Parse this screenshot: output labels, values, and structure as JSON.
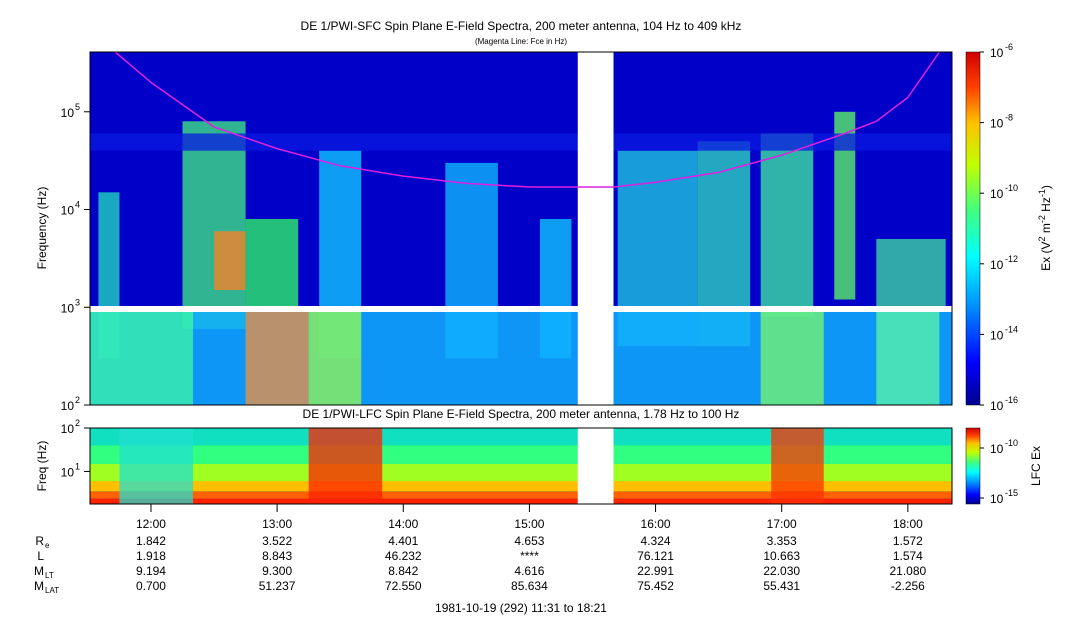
{
  "chart_data": [
    {
      "type": "heatmap",
      "title": "DE 1/PWI-SFC  Spin Plane E-Field Spectra, 200 meter antenna, 104 Hz to 409 kHz",
      "subtitle": "(Magenta Line: Fce in Hz)",
      "ylabel": "Frequency (Hz)",
      "y_scale": "log",
      "ylim": [
        100,
        409000
      ],
      "y_ticks": [
        {
          "value": 100,
          "base": "10",
          "exp": "2"
        },
        {
          "value": 1000,
          "base": "10",
          "exp": "3"
        },
        {
          "value": 10000,
          "base": "10",
          "exp": "4"
        },
        {
          "value": 100000,
          "base": "10",
          "exp": "5"
        }
      ],
      "xlim": [
        "11:31",
        "18:21"
      ],
      "data_gap": [
        "15:23",
        "15:40"
      ],
      "fce_line": {
        "color": "#e020e0",
        "points": [
          [
            "11:43",
            409000
          ],
          [
            "12:00",
            200000
          ],
          [
            "12:30",
            70000
          ],
          [
            "13:00",
            42000
          ],
          [
            "13:30",
            28000
          ],
          [
            "14:00",
            22000
          ],
          [
            "14:30",
            18500
          ],
          [
            "15:00",
            17000
          ],
          [
            "15:20",
            17000
          ],
          [
            "15:40",
            17000
          ],
          [
            "16:00",
            19000
          ],
          [
            "16:30",
            24000
          ],
          [
            "17:00",
            36000
          ],
          [
            "17:30",
            60000
          ],
          [
            "17:45",
            80000
          ],
          [
            "18:00",
            140000
          ],
          [
            "18:15",
            409000
          ]
        ]
      },
      "colorbar": {
        "label": "Ex (V",
        "label_sup1": "2",
        "label_mid": " m",
        "label_sup2": "-2",
        "label_mid2": " Hz",
        "label_sup3": "-1",
        "label_end": ")",
        "scale": "log",
        "range": [
          1e-16,
          1e-06
        ],
        "ticks": [
          {
            "value": 1e-06,
            "base": "10",
            "exp": "-6"
          },
          {
            "value": 1e-08,
            "base": "10",
            "exp": "-8"
          },
          {
            "value": 1e-10,
            "base": "10",
            "exp": "-10"
          },
          {
            "value": 1e-12,
            "base": "10",
            "exp": "-12"
          },
          {
            "value": 1e-14,
            "base": "10",
            "exp": "-14"
          },
          {
            "value": 1e-16,
            "base": "10",
            "exp": "-16"
          }
        ],
        "colormap": "rainbow"
      }
    },
    {
      "type": "heatmap",
      "title": "DE 1/PWI-LFC  Spin Plane E-Field Spectra, 200 meter antenna, 1.78 Hz to 100 Hz",
      "ylabel": "Freq (Hz)",
      "y_scale": "log",
      "ylim": [
        1.78,
        100
      ],
      "y_ticks": [
        {
          "value": 10,
          "base": "10",
          "exp": "1"
        },
        {
          "value": 100,
          "base": "10",
          "exp": "2"
        }
      ],
      "xlim": [
        "11:31",
        "18:21"
      ],
      "data_gap": [
        "15:23",
        "15:40"
      ],
      "colorbar": {
        "label": "LFC Ex",
        "scale": "log",
        "ticks": [
          {
            "value": 1e-10,
            "base": "10",
            "exp": "-10"
          },
          {
            "value": 1e-15,
            "base": "10",
            "exp": "-15"
          }
        ],
        "colormap": "rainbow"
      }
    }
  ],
  "time_axis": {
    "start": "11:31",
    "end": "18:21",
    "ticks": [
      "12:00",
      "13:00",
      "14:00",
      "15:00",
      "16:00",
      "17:00",
      "18:00"
    ]
  },
  "ephemeris": {
    "rows": [
      {
        "label": "R",
        "sub": "e",
        "values": [
          "1.842",
          "3.522",
          "4.401",
          "4.653",
          "4.324",
          "3.353",
          "1.572"
        ]
      },
      {
        "label": "L",
        "sub": "",
        "values": [
          "1.918",
          "8.843",
          "46.232",
          "****",
          "76.121",
          "10.663",
          "1.574"
        ]
      },
      {
        "label": "M",
        "sub": "LT",
        "values": [
          "9.194",
          "9.300",
          "8.842",
          "4.616",
          "22.991",
          "22.030",
          "21.080"
        ]
      },
      {
        "label": "M",
        "sub": "LAT",
        "values": [
          "0.700",
          "51.237",
          "72.550",
          "85.634",
          "75.452",
          "55.431",
          "-2.256"
        ]
      }
    ]
  },
  "footer": "1981-10-19 (292) 11:31 to 18:21",
  "colors": {
    "background_low": "#0000c8",
    "fce_line": "#e020e0",
    "gap": "#ffffff"
  }
}
